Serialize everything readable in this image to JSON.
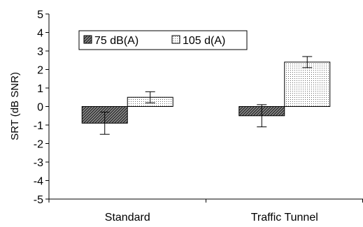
{
  "chart_data": {
    "type": "bar",
    "categories": [
      "Standard",
      "Traffic Tunnel"
    ],
    "series": [
      {
        "name": "75 dB(A)",
        "values": [
          -0.9,
          -0.5
        ],
        "errors": [
          0.6,
          0.6
        ],
        "pattern": "diagonal-hatch"
      },
      {
        "name": "105 d(A)",
        "values": [
          0.5,
          2.4
        ],
        "errors": [
          0.3,
          0.3
        ],
        "pattern": "dotted"
      }
    ],
    "title": "",
    "xlabel": "",
    "ylabel": "SRT (dB SNR)",
    "ylim": [
      -5,
      5
    ],
    "yticks": [
      "-5",
      "-4",
      "-3",
      "-2",
      "-1",
      "0",
      "1",
      "2",
      "3",
      "4",
      "5"
    ],
    "grid": false,
    "legend_position": "top-left"
  }
}
